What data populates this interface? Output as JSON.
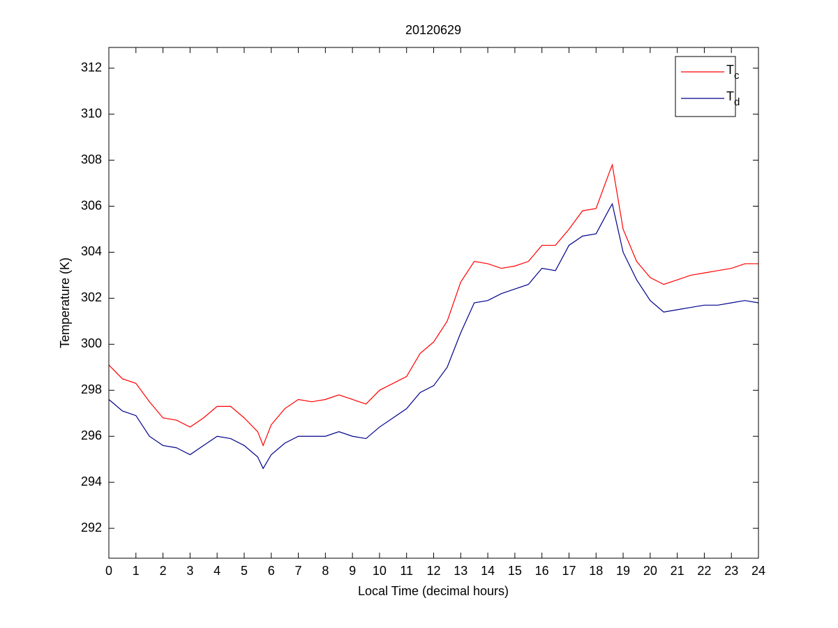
{
  "chart_data": {
    "type": "line",
    "title": "20120629",
    "xlabel": "Local Time (decimal hours)",
    "ylabel": "Temperature (K)",
    "x": [
      0,
      0.5,
      1,
      1.5,
      2,
      2.5,
      3,
      3.5,
      4,
      4.5,
      5,
      5.5,
      5.7,
      6,
      6.5,
      7,
      7.5,
      8,
      8.5,
      9,
      9.5,
      10,
      10.5,
      11,
      11.5,
      12,
      12.5,
      13,
      13.5,
      14,
      14.5,
      15,
      15.5,
      16,
      16.5,
      17,
      17.5,
      18,
      18.5,
      18.6,
      19,
      19.5,
      20,
      20.5,
      21,
      21.5,
      22,
      22.5,
      23,
      23.5,
      24
    ],
    "series": [
      {
        "name": "Tc",
        "color": "#ff0000",
        "values": [
          299.1,
          298.5,
          298.3,
          297.5,
          296.8,
          296.7,
          296.4,
          296.8,
          297.3,
          297.3,
          296.8,
          296.2,
          295.6,
          296.5,
          297.2,
          297.6,
          297.5,
          297.6,
          297.8,
          297.6,
          297.4,
          298.0,
          298.3,
          298.6,
          299.6,
          300.1,
          301.0,
          302.7,
          303.6,
          303.5,
          303.3,
          303.4,
          303.6,
          304.3,
          304.3,
          305.0,
          305.8,
          305.9,
          307.5,
          307.8,
          305.0,
          303.6,
          302.9,
          302.6,
          302.8,
          303.0,
          303.1,
          303.2,
          303.3,
          303.5,
          303.5
        ]
      },
      {
        "name": "Td",
        "color": "#00008b",
        "values": [
          297.6,
          297.1,
          296.9,
          296.0,
          295.6,
          295.5,
          295.2,
          295.6,
          296.0,
          295.9,
          295.6,
          295.1,
          294.6,
          295.2,
          295.7,
          296.0,
          296.0,
          296.0,
          296.2,
          296.0,
          295.9,
          296.4,
          296.8,
          297.2,
          297.9,
          298.2,
          299.0,
          300.5,
          301.8,
          301.9,
          302.2,
          302.4,
          302.6,
          303.3,
          303.2,
          304.3,
          304.7,
          304.8,
          305.9,
          306.1,
          304.0,
          302.8,
          301.9,
          301.4,
          301.5,
          301.6,
          301.7,
          301.7,
          301.8,
          301.9,
          301.8
        ]
      }
    ],
    "xlim": [
      0,
      24
    ],
    "xticks": [
      0,
      1,
      2,
      3,
      4,
      5,
      6,
      7,
      8,
      9,
      10,
      11,
      12,
      13,
      14,
      15,
      16,
      17,
      18,
      19,
      20,
      21,
      22,
      23,
      24
    ],
    "ylim": [
      290.7,
      312.9
    ],
    "yticks": [
      292,
      294,
      296,
      298,
      300,
      302,
      304,
      306,
      308,
      310,
      312
    ],
    "grid": false,
    "legend": "upper right"
  }
}
